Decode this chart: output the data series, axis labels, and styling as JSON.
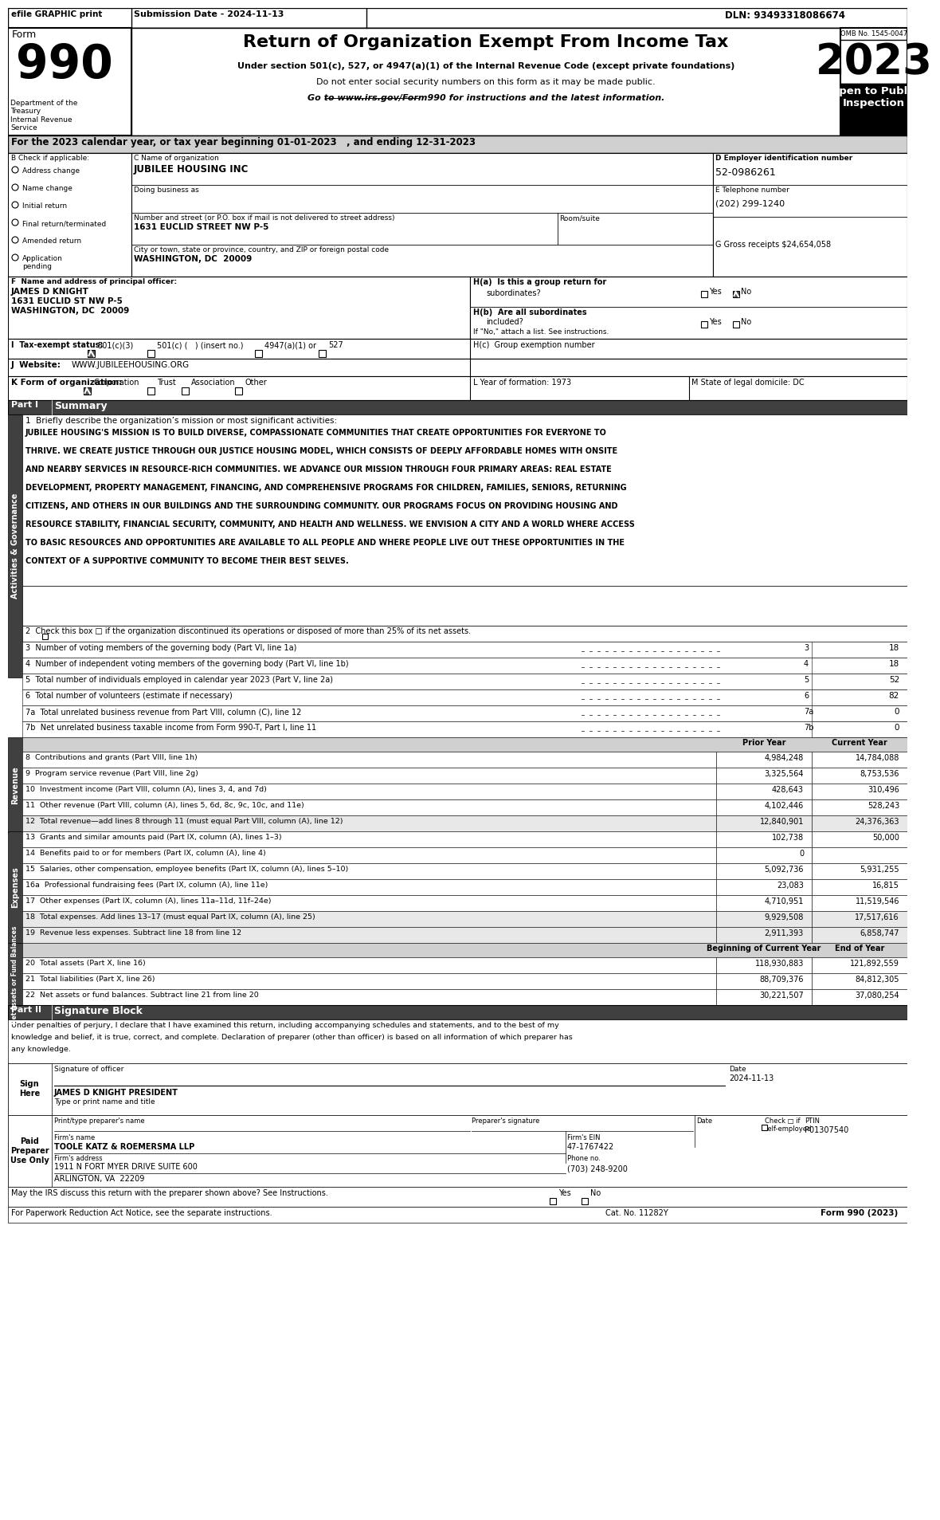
{
  "efile_text": "efile GRAPHIC print",
  "submission_date": "Submission Date - 2024-11-13",
  "dln": "DLN: 93493318086674",
  "form_number": "990",
  "form_label": "Form",
  "main_title": "Return of Organization Exempt From Income Tax",
  "subtitle1": "Under section 501(c), 527, or 4947(a)(1) of the Internal Revenue Code (except private foundations)",
  "subtitle2": "Do not enter social security numbers on this form as it may be made public.",
  "subtitle3": "Go to www.irs.gov/Form990 for instructions and the latest information.",
  "omb": "OMB No. 1545-0047",
  "year": "2023",
  "open_public": "Open to Public\nInspection",
  "dept_treasury": "Department of the\nTreasury\nInternal Revenue\nService",
  "for_text": "For the 2023 calendar year, or tax year beginning 01-01-2023   , and ending 12-31-2023",
  "b_label": "B Check if applicable:",
  "check_items": [
    "Address change",
    "Name change",
    "Initial return",
    "Final return/terminated",
    "Amended return",
    "Application\npending"
  ],
  "c_label": "C Name of organization",
  "org_name": "JUBILEE HOUSING INC",
  "dba_label": "Doing business as",
  "street_label": "Number and street (or P.O. box if mail is not delivered to street address)",
  "room_label": "Room/suite",
  "street_value": "1631 EUCLID STREET NW P-5",
  "city_label": "City or town, state or province, country, and ZIP or foreign postal code",
  "city_value": "WASHINGTON, DC  20009",
  "d_label": "D Employer identification number",
  "ein": "52-0986261",
  "e_label": "E Telephone number",
  "phone": "(202) 299-1240",
  "g_label": "G Gross receipts $",
  "gross_receipts": "24,654,058",
  "f_label": "F  Name and address of principal officer:",
  "officer_name": "JAMES D KNIGHT",
  "officer_addr1": "1631 EUCLID ST NW P-5",
  "officer_addr2": "WASHINGTON, DC  20009",
  "ha_label": "H(a)  Is this a group return for",
  "ha_sub": "subordinates?",
  "ha_yes": "Yes",
  "ha_no": "No",
  "hb_label": "H(b)  Are all subordinates",
  "hb_sub": "included?",
  "hb_yes": "Yes",
  "hb_no": "No",
  "hb_note": "If \"No,\" attach a list. See instructions.",
  "hc_label": "H(c)  Group exemption number",
  "i_label": "I  Tax-exempt status:",
  "i_501c3": "501(c)(3)",
  "i_501c": "501(c) (   ) (insert no.)",
  "i_4947": "4947(a)(1) or",
  "i_527": "527",
  "j_label": "J  Website:",
  "j_value": "WWW.JUBILEEHOUSING.ORG",
  "k_label": "K Form of organization:",
  "k_corp": "Corporation",
  "k_trust": "Trust",
  "k_assoc": "Association",
  "k_other": "Other",
  "l_label": "L Year of formation: 1973",
  "m_label": "M State of legal domicile: DC",
  "part1_label": "Part I",
  "part1_title": "Summary",
  "mission_label": "1  Briefly describe the organization’s mission or most significant activities:",
  "mission_text": "JUBILEE HOUSING'S MISSION IS TO BUILD DIVERSE, COMPASSIONATE COMMUNITIES THAT CREATE OPPORTUNITIES FOR EVERYONE TO\nTHRIVE. WE CREATE JUSTICE THROUGH OUR JUSTICE HOUSING MODEL, WHICH CONSISTS OF DEEPLY AFFORDABLE HOMES WITH ONSITE\nAND NEARBY SERVICES IN RESOURCE-RICH COMMUNITIES. WE ADVANCE OUR MISSION THROUGH FOUR PRIMARY AREAS: REAL ESTATE\nDEVELOPMENT, PROPERTY MANAGEMENT, FINANCING, AND COMPREHENSIVE PROGRAMS FOR CHILDREN, FAMILIES, SENIORS, RETURNING\nCITIZENS, AND OTHERS IN OUR BUILDINGS AND THE SURROUNDING COMMUNITY. OUR PROGRAMS FOCUS ON PROVIDING HOUSING AND\nRESOURCE STABILITY, FINANCIAL SECURITY, COMMUNITY, AND HEALTH AND WELLNESS. WE ENVISION A CITY AND A WORLD WHERE ACCESS\nTO BASIC RESOURCES AND OPPORTUNITIES ARE AVAILABLE TO ALL PEOPLE AND WHERE PEOPLE LIVE OUT THESE OPPORTUNITIES IN THE\nCONTEXT OF A SUPPORTIVE COMMUNITY TO BECOME THEIR BEST SELVES.",
  "check2_text": "2  Check this box □ if the organization discontinued its operations or disposed of more than 25% of its net assets.",
  "line3_text": "3  Number of voting members of the governing body (Part VI, line 1a)",
  "line3_val": "18",
  "line4_text": "4  Number of independent voting members of the governing body (Part VI, line 1b)",
  "line4_val": "18",
  "line5_text": "5  Total number of individuals employed in calendar year 2023 (Part V, line 2a)",
  "line5_val": "52",
  "line6_text": "6  Total number of volunteers (estimate if necessary)",
  "line6_val": "82",
  "line7a_text": "7a  Total unrelated business revenue from Part VIII, column (C), line 12",
  "line7a_val": "0",
  "line7b_text": "7b  Net unrelated business taxable income from Form 990-T, Part I, line 11",
  "line7b_val": "0",
  "col_prior": "Prior Year",
  "col_current": "Current Year",
  "line8_text": "8  Contributions and grants (Part VIII, line 1h)",
  "line8_prior": "4,984,248",
  "line8_current": "14,784,088",
  "line9_text": "9  Program service revenue (Part VIII, line 2g)",
  "line9_prior": "3,325,564",
  "line9_current": "8,753,536",
  "line10_text": "10  Investment income (Part VIII, column (A), lines 3, 4, and 7d)",
  "line10_prior": "428,643",
  "line10_current": "310,496",
  "line11_text": "11  Other revenue (Part VIII, column (A), lines 5, 6d, 8c, 9c, 10c, and 11e)",
  "line11_prior": "4,102,446",
  "line11_current": "528,243",
  "line12_text": "12  Total revenue—add lines 8 through 11 (must equal Part VIII, column (A), line 12)",
  "line12_prior": "12,840,901",
  "line12_current": "24,376,363",
  "line13_text": "13  Grants and similar amounts paid (Part IX, column (A), lines 1–3)",
  "line13_prior": "102,738",
  "line13_current": "50,000",
  "line14_text": "14  Benefits paid to or for members (Part IX, column (A), line 4)",
  "line14_prior": "0",
  "line14_current": "",
  "line15_text": "15  Salaries, other compensation, employee benefits (Part IX, column (A), lines 5–10)",
  "line15_prior": "5,092,736",
  "line15_current": "5,931,255",
  "line16a_text": "16a  Professional fundraising fees (Part IX, column (A), line 11e)",
  "line16a_prior": "23,083",
  "line16a_current": "16,815",
  "line17_text": "17  Other expenses (Part IX, column (A), lines 11a–11d, 11f–24e)",
  "line17_prior": "4,710,951",
  "line17_current": "11,519,546",
  "line18_text": "18  Total expenses. Add lines 13–17 (must equal Part IX, column (A), line 25)",
  "line18_prior": "9,929,508",
  "line18_current": "17,517,616",
  "line19_text": "19  Revenue less expenses. Subtract line 18 from line 12",
  "line19_prior": "2,911,393",
  "line19_current": "6,858,747",
  "col_begin": "Beginning of Current Year",
  "col_end": "End of Year",
  "line20_text": "20  Total assets (Part X, line 16)",
  "line20_begin": "118,930,883",
  "line20_end": "121,892,559",
  "line21_text": "21  Total liabilities (Part X, line 26)",
  "line21_begin": "88,709,376",
  "line21_end": "84,812,305",
  "line22_text": "22  Net assets or fund balances. Subtract line 21 from line 20",
  "line22_begin": "30,221,507",
  "line22_end": "37,080,254",
  "part2_label": "Part II",
  "part2_title": "Signature Block",
  "sig_text": "Under penalties of perjury, I declare that I have examined this return, including accompanying schedules and statements, and to the best of my\nknowledge and belief, it is true, correct, and complete. Declaration of preparer (other than officer) is based on all information of which preparer has\nany knowledge.",
  "sign_here": "Sign\nHere",
  "sig_officer_label": "Signature of officer",
  "sig_date_label": "Date",
  "sig_date_val": "2024-11-13",
  "sig_name": "JAMES D KNIGHT PRESIDENT",
  "sig_title_label": "Type or print name and title",
  "paid_preparer": "Paid\nPreparer\nUse Only",
  "preparer_name_label": "Print/type preparer's name",
  "preparer_sig_label": "Preparer's signature",
  "preparer_date_label": "Date",
  "preparer_check": "Check □ if\nself-employed",
  "ptin_label": "PTIN",
  "ptin_val": "P01307540",
  "firms_name_label": "Firm's name",
  "firms_name": "TOOLE KATZ & ROEMERSMA LLP",
  "firms_ein_label": "Firm's EIN",
  "firms_ein": "47-1767422",
  "firms_addr_label": "Firm's address",
  "firms_addr": "1911 N FORT MYER DRIVE SUITE 600",
  "firms_city": "ARLINGTON, VA  22209",
  "firms_phone_label": "Phone no.",
  "firms_phone": "(703) 248-9200",
  "discuss_text": "May the IRS discuss this return with the preparer shown above? See Instructions.",
  "discuss_yes": "Yes",
  "discuss_no": "No",
  "cat_no": "Cat. No. 11282Y",
  "form_footer": "Form 990 (2023)",
  "sidebar_text": "Activities & Governance",
  "sidebar_revenue": "Revenue",
  "sidebar_expenses": "Expenses",
  "sidebar_netassets": "Net Assets or Fund Balances"
}
